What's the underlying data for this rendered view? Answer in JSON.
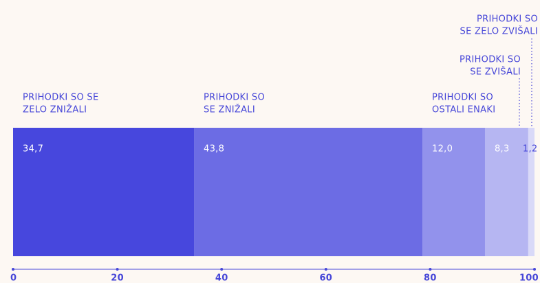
{
  "chart_data": {
    "type": "stacked-bar",
    "categories": [
      [
        "PRIHODKI SO SE",
        "ZELO ZNIŽALI"
      ],
      [
        "PRIHODKI SO",
        "SE ZNIŽALI"
      ],
      [
        "PRIHODKI SO",
        "OSTALI ENAKI"
      ],
      [
        "PRIHODKI SO",
        "SE ZVIŠALI"
      ],
      [
        "PRIHODKI SO",
        "SE ZELO ZVIŠALI"
      ]
    ],
    "values": [
      34.7,
      43.8,
      12.0,
      8.3,
      1.2
    ],
    "value_labels": [
      "34,7",
      "43,8",
      "12,0",
      "8,3",
      "1,2"
    ],
    "colors": [
      "#4747dd",
      "#6c6ce4",
      "#9292ec",
      "#b6b6f2",
      "#d9d9f8"
    ],
    "xlim": [
      0,
      100
    ],
    "xticks": [
      0,
      20,
      40,
      60,
      80,
      100
    ]
  }
}
